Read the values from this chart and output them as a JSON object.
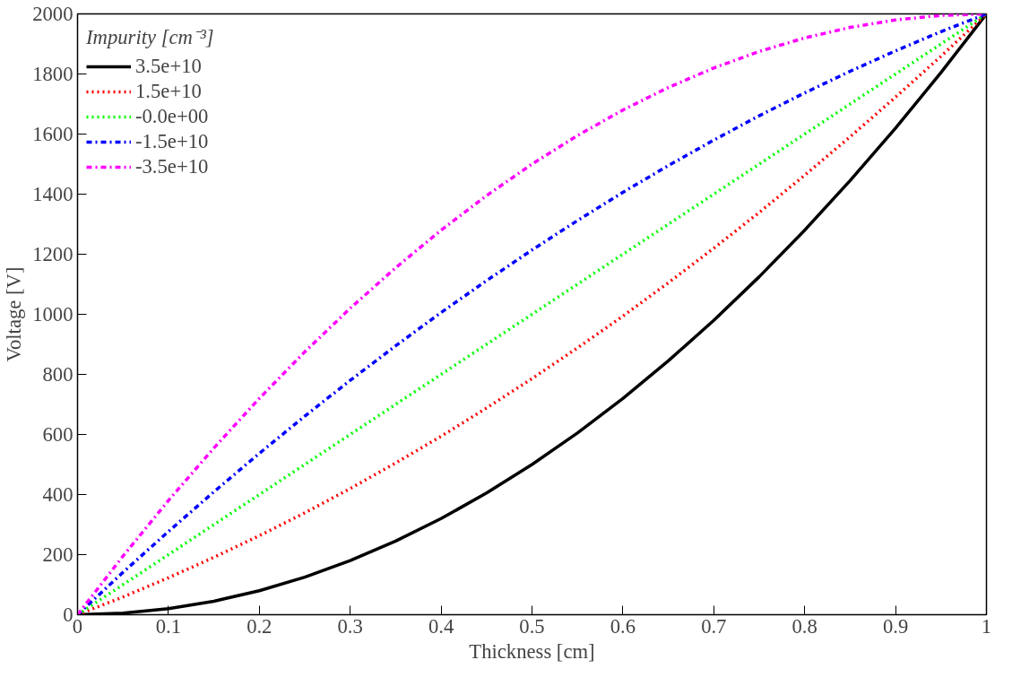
{
  "chart_data": {
    "type": "line",
    "xlabel": "Thickness [cm]",
    "ylabel": "Voltage [V]",
    "legend_title": "Impurity [cm⁻³]",
    "x": [
      0,
      0.05,
      0.1,
      0.15,
      0.2,
      0.25,
      0.3,
      0.35,
      0.4,
      0.45,
      0.5,
      0.55,
      0.6,
      0.65,
      0.7,
      0.75,
      0.8,
      0.85,
      0.9,
      0.95,
      1
    ],
    "series": [
      {
        "name": "3.5e+10",
        "color": "#000000",
        "line_style": "solid",
        "values": [
          0,
          5,
          20,
          45,
          80,
          125,
          180,
          245,
          320,
          405,
          500,
          605,
          720,
          845,
          980,
          1125,
          1280,
          1445,
          1620,
          1805,
          2000
        ]
      },
      {
        "name": "1.5e+10",
        "color": "#ff0000",
        "line_style": "dotted",
        "values": [
          0,
          59,
          123,
          191,
          263,
          339,
          420,
          505,
          594,
          688,
          786,
          888,
          994,
          1105,
          1220,
          1339,
          1463,
          1591,
          1723,
          1859,
          2000
        ]
      },
      {
        "name": "-0.0e+00",
        "color": "#00ff00",
        "line_style": "dotted",
        "values": [
          0,
          100,
          200,
          300,
          400,
          500,
          600,
          700,
          800,
          900,
          1000,
          1100,
          1200,
          1300,
          1400,
          1500,
          1600,
          1700,
          1800,
          1900,
          2000
        ]
      },
      {
        "name": "-1.5e+10",
        "color": "#0000ff",
        "line_style": "dashdot",
        "values": [
          0,
          141,
          277,
          409,
          537,
          661,
          780,
          895,
          1006,
          1112,
          1214,
          1312,
          1406,
          1495,
          1580,
          1661,
          1737,
          1809,
          1877,
          1941,
          2000
        ]
      },
      {
        "name": "-3.5e+10",
        "color": "#ff00ff",
        "line_style": "dashdot",
        "values": [
          0,
          195,
          380,
          555,
          720,
          875,
          1020,
          1155,
          1280,
          1395,
          1500,
          1595,
          1680,
          1755,
          1820,
          1875,
          1920,
          1955,
          1980,
          1995,
          2000
        ]
      }
    ],
    "xlim": [
      0,
      1
    ],
    "ylim": [
      0,
      2000
    ],
    "xticks": [
      0,
      0.1,
      0.2,
      0.3,
      0.4,
      0.5,
      0.6,
      0.7,
      0.8,
      0.9,
      1
    ],
    "yticks": [
      0,
      200,
      400,
      600,
      800,
      1000,
      1200,
      1400,
      1600,
      1800,
      2000
    ],
    "grid": false,
    "legend": "top left"
  }
}
